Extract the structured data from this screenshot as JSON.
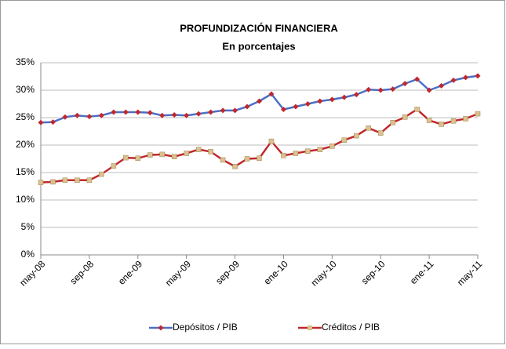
{
  "chart_data": {
    "type": "line",
    "title": "PROFUNDIZACIÓN FINANCIERA",
    "subtitle": "En porcentajes",
    "categories": [
      "may-08",
      null,
      null,
      null,
      "sep-08",
      null,
      null,
      null,
      "ene-09",
      null,
      null,
      null,
      "may-09",
      null,
      null,
      null,
      "sep-09",
      null,
      null,
      null,
      "ene-10",
      null,
      null,
      null,
      "may-10",
      null,
      null,
      null,
      "sep-10",
      null,
      null,
      null,
      "ene-11",
      null,
      null,
      null,
      "may-11"
    ],
    "series": [
      {
        "name": "Depósitos / PIB",
        "color": "#4a6fc4",
        "marker_color": "#c0282d",
        "values": [
          24.1,
          24.2,
          25.1,
          25.4,
          25.2,
          25.4,
          26.0,
          26.0,
          26.0,
          25.9,
          25.4,
          25.5,
          25.4,
          25.7,
          26.0,
          26.3,
          26.3,
          27.0,
          28.0,
          29.3,
          26.5,
          27.0,
          27.5,
          28.0,
          28.3,
          28.7,
          29.2,
          30.1,
          30.0,
          30.2,
          31.2,
          32.0,
          30.0,
          30.8,
          31.8,
          32.3,
          32.6
        ]
      },
      {
        "name": "Créditos / PIB",
        "color": "#c0282d",
        "marker_color": "#d9c28f",
        "values": [
          13.2,
          13.3,
          13.6,
          13.6,
          13.6,
          14.7,
          16.2,
          17.7,
          17.6,
          18.2,
          18.3,
          17.9,
          18.5,
          19.2,
          18.8,
          17.3,
          16.1,
          17.5,
          17.6,
          20.7,
          18.1,
          18.5,
          18.9,
          19.2,
          19.8,
          20.9,
          21.7,
          23.1,
          22.2,
          24.1,
          25.1,
          26.5,
          24.5,
          23.8,
          24.4,
          24.8,
          25.7
        ]
      }
    ],
    "ylim": [
      0,
      35
    ],
    "yticks": [
      {
        "value": 0,
        "label": "0%"
      },
      {
        "value": 5,
        "label": "5%"
      },
      {
        "value": 10,
        "label": "10%"
      },
      {
        "value": 15,
        "label": "15%"
      },
      {
        "value": 20,
        "label": "20%"
      },
      {
        "value": 25,
        "label": "25%"
      },
      {
        "value": 30,
        "label": "30%"
      },
      {
        "value": 35,
        "label": "35%"
      }
    ],
    "grid": true,
    "legend": "bottom"
  }
}
